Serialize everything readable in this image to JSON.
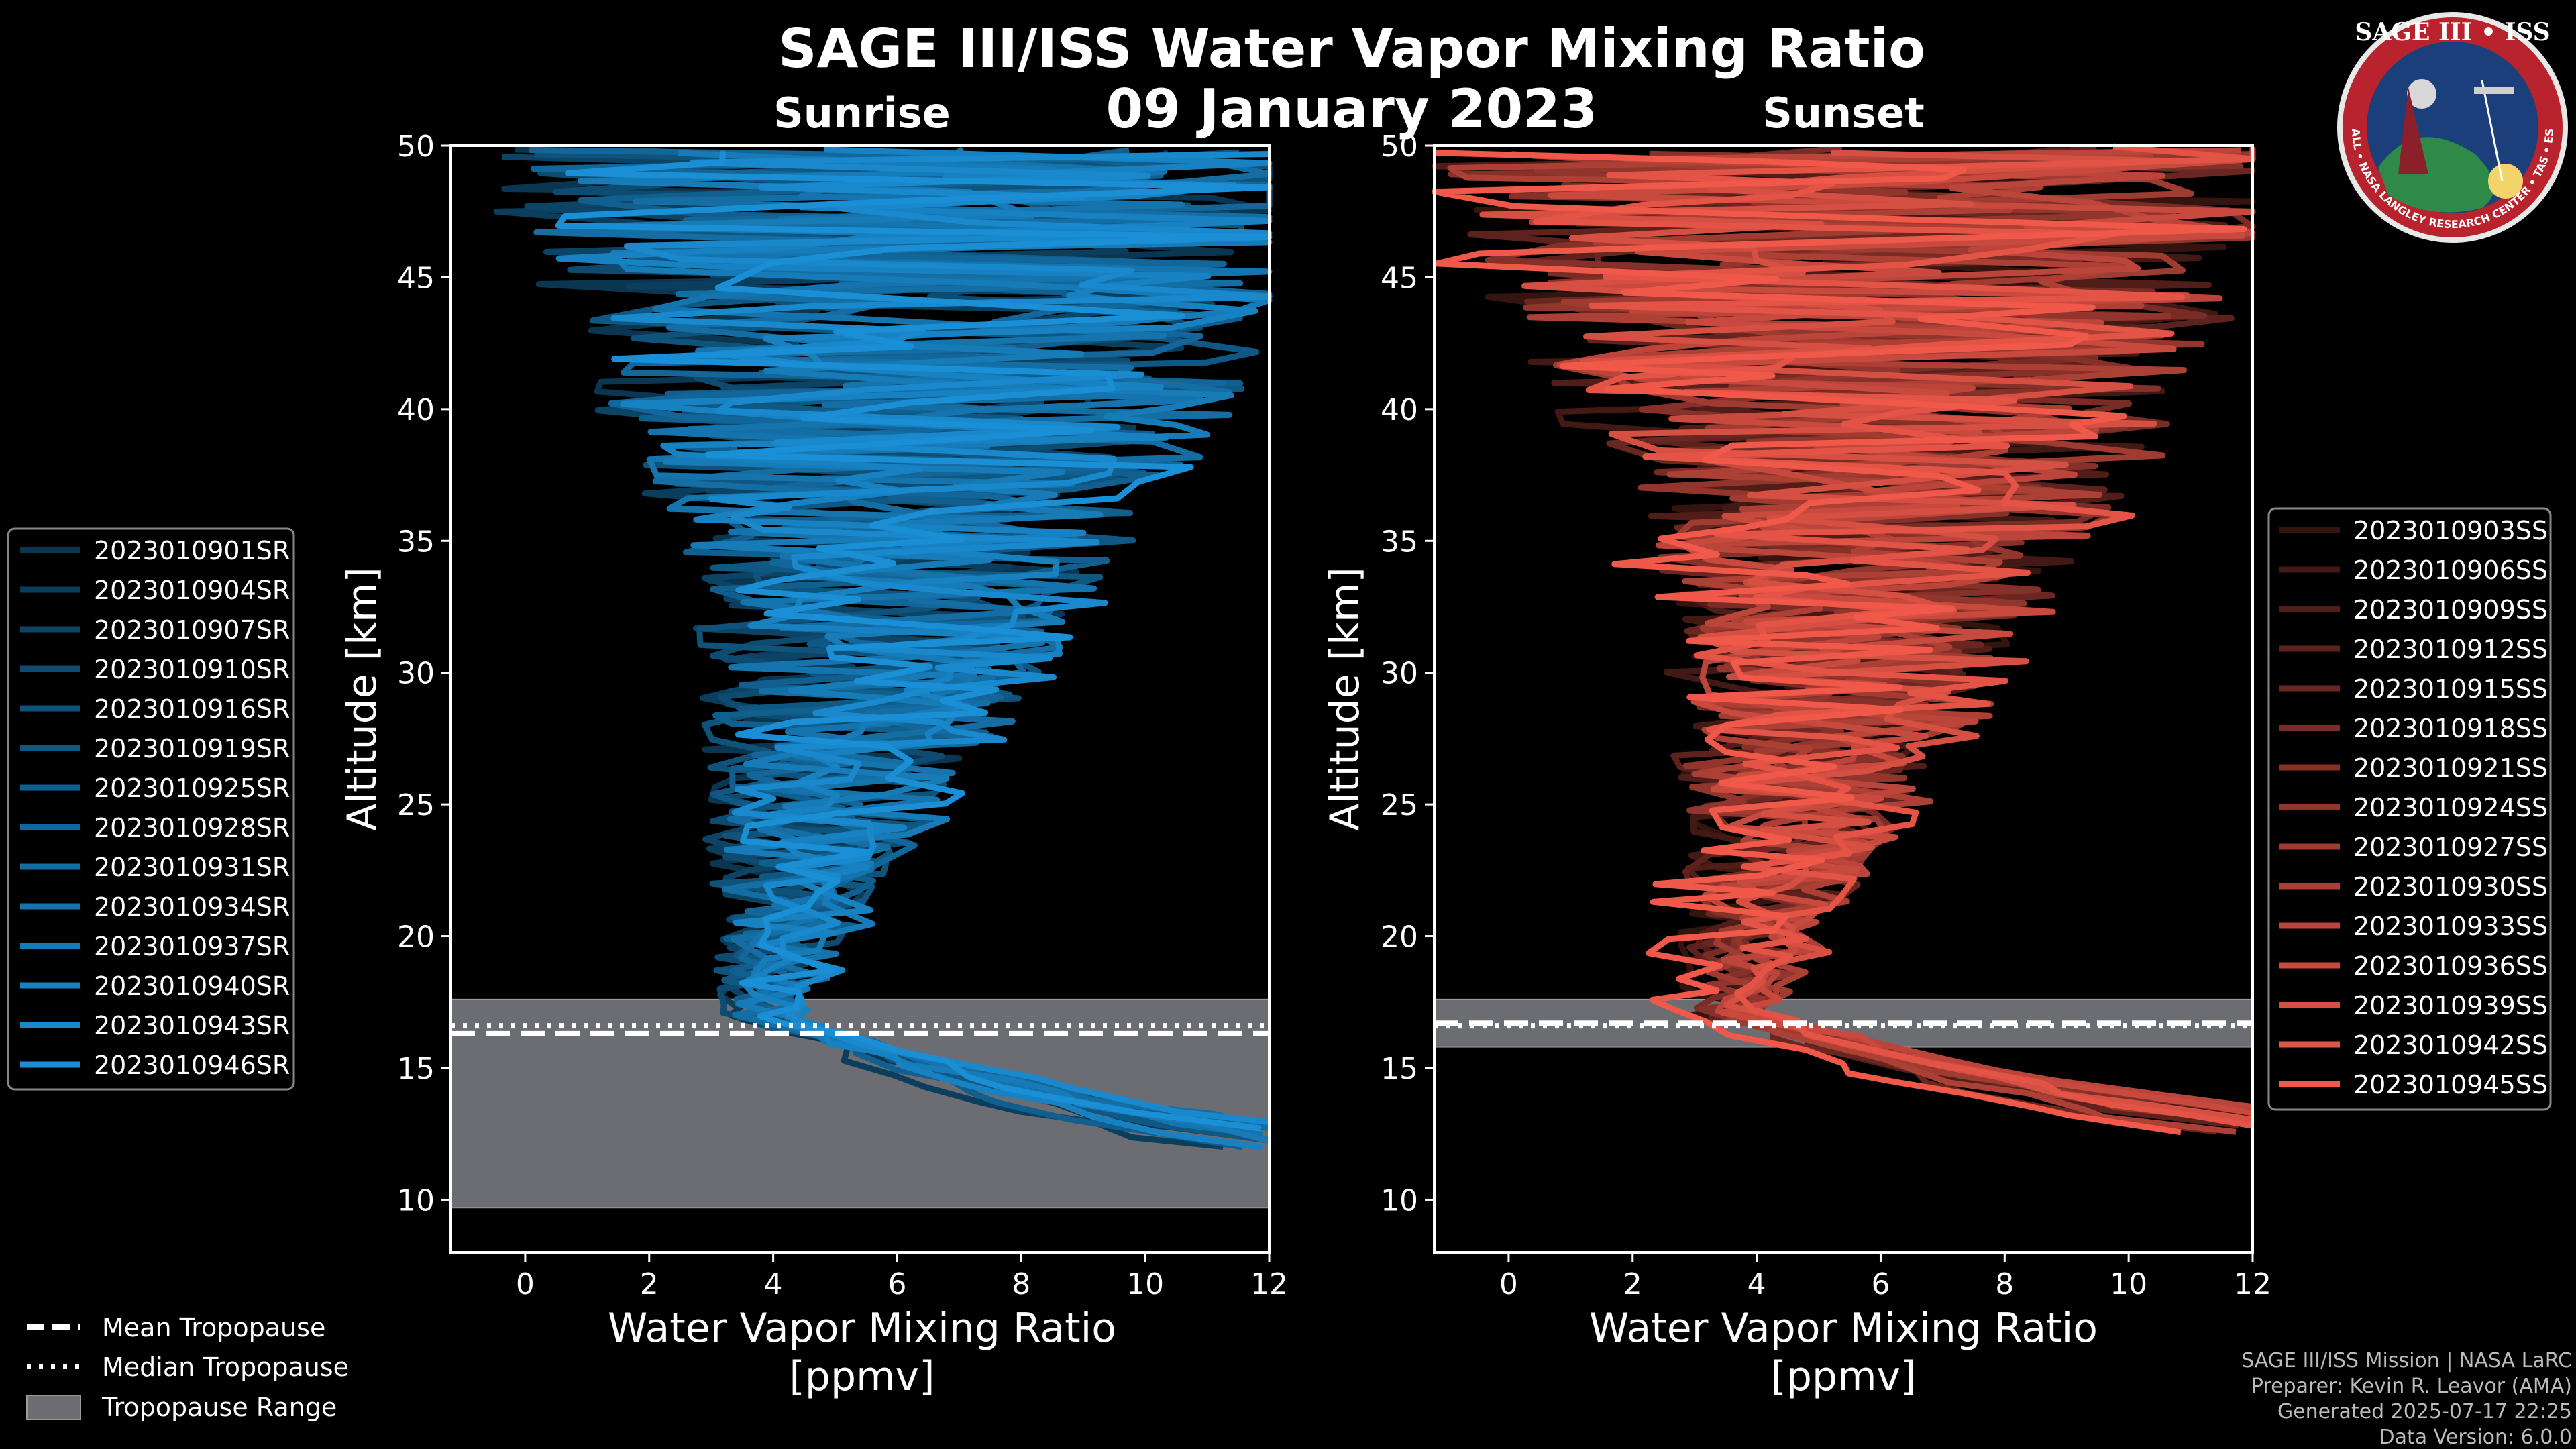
{
  "title": "SAGE III/ISS Water Vapor Mixing Ratio",
  "date": "09 January 2023",
  "logo": {
    "top_text": "SAGE III • ISS",
    "ring_text": "BALL • NASA LANGLEY RESEARCH CENTER • TAS • ESA"
  },
  "credits": {
    "line1": "SAGE III/ISS Mission | NASA LaRC",
    "line2": "Preparer: Kevin R. Leavor (AMA)",
    "line3": "Generated 2025-07-17 22:25",
    "line4": "Data Version: 6.0.0"
  },
  "bottom_legend": {
    "mean": "Mean Tropopause",
    "median": "Median Tropopause",
    "range": "Tropopause Range"
  },
  "colors": {
    "sunrise": "#1a8fd6",
    "sunset": "#f0594a",
    "range": "#6b6d72"
  },
  "chart_data": [
    {
      "type": "line",
      "panel_title": "Sunrise",
      "xlabel": "Water Vapor Mixing Ratio",
      "xlabel_units": "[ppmv]",
      "ylabel": "Altitude [km]",
      "xlim": [
        -1.2,
        12
      ],
      "ylim": [
        8,
        50
      ],
      "xticks": [
        0,
        2,
        4,
        6,
        8,
        10,
        12
      ],
      "yticks": [
        10,
        15,
        20,
        25,
        30,
        35,
        40,
        45,
        50
      ],
      "tropopause": {
        "mean": 16.3,
        "median": 16.6,
        "range": [
          9.7,
          17.6
        ]
      },
      "series": [
        "2023010901SR",
        "2023010904SR",
        "2023010907SR",
        "2023010910SR",
        "2023010916SR",
        "2023010919SR",
        "2023010925SR",
        "2023010928SR",
        "2023010931SR",
        "2023010934SR",
        "2023010937SR",
        "2023010940SR",
        "2023010943SR",
        "2023010946SR"
      ],
      "profile_shape": {
        "surface_km": 12.5,
        "surface_ppmv": 11.5,
        "min_km": 17.0,
        "min_ppmv": 3.5,
        "peak_km": 33,
        "peak_ppmv": 5.8,
        "top_km": 50,
        "top_ppmv": 6.5
      }
    },
    {
      "type": "line",
      "panel_title": "Sunset",
      "xlabel": "Water Vapor Mixing Ratio",
      "xlabel_units": "[ppmv]",
      "ylabel": "Altitude [km]",
      "xlim": [
        -1.2,
        12
      ],
      "ylim": [
        8,
        50
      ],
      "xticks": [
        0,
        2,
        4,
        6,
        8,
        10,
        12
      ],
      "yticks": [
        10,
        15,
        20,
        25,
        30,
        35,
        40,
        45,
        50
      ],
      "tropopause": {
        "mean": 16.7,
        "median": 16.6,
        "range": [
          15.8,
          17.6
        ]
      },
      "series": [
        "2023010903SS",
        "2023010906SS",
        "2023010909SS",
        "2023010912SS",
        "2023010915SS",
        "2023010918SS",
        "2023010921SS",
        "2023010924SS",
        "2023010927SS",
        "2023010930SS",
        "2023010933SS",
        "2023010936SS",
        "2023010939SS",
        "2023010942SS",
        "2023010945SS"
      ],
      "profile_shape": {
        "surface_km": 13.0,
        "surface_ppmv": 11.5,
        "min_km": 17.0,
        "min_ppmv": 3.4,
        "peak_km": 33,
        "peak_ppmv": 5.6,
        "top_km": 50,
        "top_ppmv": 6.0
      }
    }
  ]
}
